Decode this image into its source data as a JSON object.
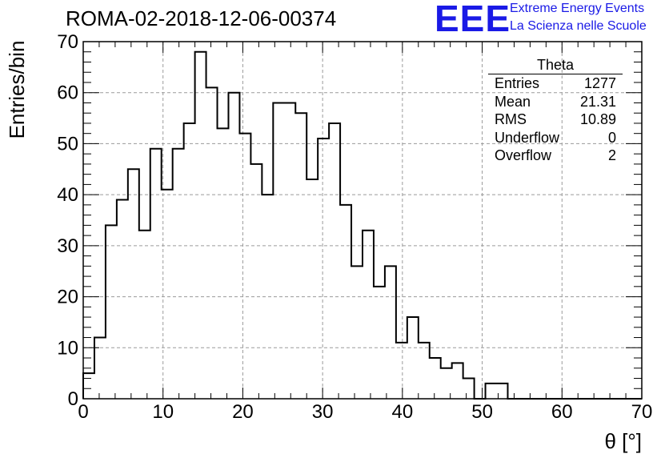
{
  "title": "ROMA-02-2018-12-06-00374",
  "logo": {
    "letters": "EEE",
    "line1": "Extreme Energy Events",
    "line2": "La Scienza nelle Scuole"
  },
  "stats_box": {
    "title": "Theta",
    "rows": [
      {
        "label": "Entries",
        "value": "1277"
      },
      {
        "label": "Mean",
        "value": "21.31"
      },
      {
        "label": "RMS",
        "value": "10.89"
      },
      {
        "label": "Underflow",
        "value": "0"
      },
      {
        "label": "Overflow",
        "value": "2"
      }
    ]
  },
  "colors": {
    "line": "#000000",
    "grid": "#9a9a9a",
    "logo": "#1a1ae6"
  },
  "chart_data": {
    "type": "histogram",
    "title": "ROMA-02-2018-12-06-00374",
    "xlabel": "θ [°]",
    "ylabel": "Entries/bin",
    "xlim": [
      0,
      70
    ],
    "ylim": [
      0,
      70
    ],
    "bin_width": 1.4,
    "bin_edges_start": 0,
    "xticks": [
      0,
      10,
      20,
      30,
      40,
      50,
      60,
      70
    ],
    "yticks": [
      0,
      10,
      20,
      30,
      40,
      50,
      60,
      70
    ],
    "grid": true,
    "values": [
      5,
      12,
      34,
      39,
      45,
      33,
      49,
      41,
      49,
      54,
      68,
      61,
      53,
      60,
      52,
      46,
      40,
      58,
      58,
      56,
      43,
      51,
      54,
      38,
      26,
      33,
      22,
      26,
      11,
      16,
      11,
      8,
      6,
      7,
      4,
      0,
      3,
      3,
      0,
      0,
      0,
      0,
      0,
      0,
      0,
      0,
      0,
      0,
      0,
      0
    ]
  }
}
